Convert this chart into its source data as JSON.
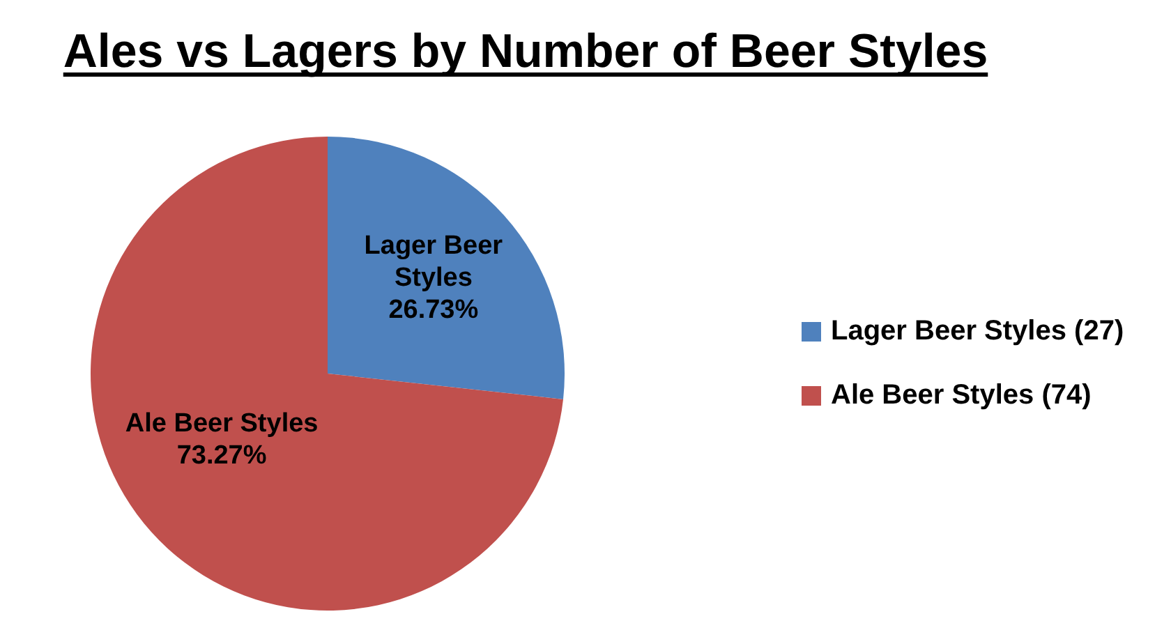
{
  "chart_data": {
    "type": "pie",
    "title": "Ales vs Lagers by Number of Beer Styles",
    "categories": [
      "Lager Beer Styles (27)",
      "Ale Beer Styles (74)"
    ],
    "values": [
      26.73,
      73.27
    ],
    "colors": [
      "#4f81bd",
      "#c0504d"
    ],
    "value_labels": [
      "Lager Beer Styles 26.73%",
      "Ale Beer Styles 73.27%"
    ],
    "legend": "right"
  }
}
